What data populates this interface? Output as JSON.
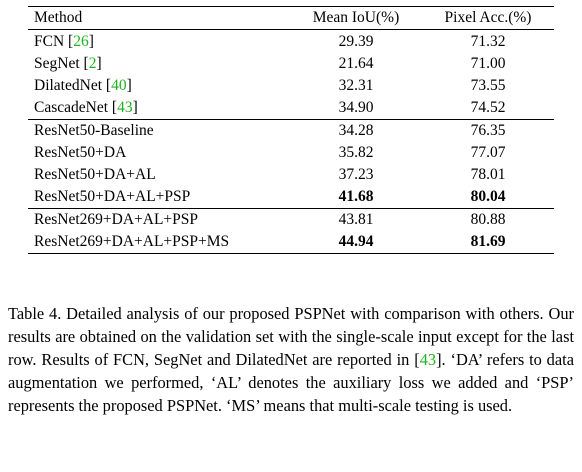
{
  "table": {
    "headers": [
      "Method",
      "Mean IoU(%)",
      "Pixel Acc.(%)"
    ],
    "groups": [
      [
        {
          "method": "FCN",
          "cite": "26",
          "miou": "29.39",
          "pacc": "71.32",
          "bold": false
        },
        {
          "method": "SegNet",
          "cite": "2",
          "miou": "21.64",
          "pacc": "71.00",
          "bold": false
        },
        {
          "method": "DilatedNet",
          "cite": "40",
          "miou": "32.31",
          "pacc": "73.55",
          "bold": false
        },
        {
          "method": "CascadeNet",
          "cite": "43",
          "miou": "34.90",
          "pacc": "74.52",
          "bold": false
        }
      ],
      [
        {
          "method": "ResNet50-Baseline",
          "miou": "34.28",
          "pacc": "76.35",
          "bold": false
        },
        {
          "method": "ResNet50+DA",
          "miou": "35.82",
          "pacc": "77.07",
          "bold": false
        },
        {
          "method": "ResNet50+DA+AL",
          "miou": "37.23",
          "pacc": "78.01",
          "bold": false
        },
        {
          "method": "ResNet50+DA+AL+PSP",
          "miou": "41.68",
          "pacc": "80.04",
          "bold": true
        }
      ],
      [
        {
          "method": "ResNet269+DA+AL+PSP",
          "miou": "43.81",
          "pacc": "80.88",
          "bold": false
        },
        {
          "method": "ResNet269+DA+AL+PSP+MS",
          "miou": "44.94",
          "pacc": "81.69",
          "bold": true
        }
      ]
    ]
  },
  "caption": {
    "text_1": "Table 4. Detailed analysis of our proposed PSPNet with comparison with others.  Our results are obtained on the validation set with the single-scale input except for the last row. Results of FCN, SegNet and DilatedNet are reported in [",
    "cite": "43",
    "text_2": "].  ‘DA’ refers to data augmentation we performed, ‘AL’ denotes the auxiliary loss we added and ‘PSP’ represents the proposed PSPNet.  ‘MS’ means that multi-scale testing is used."
  }
}
